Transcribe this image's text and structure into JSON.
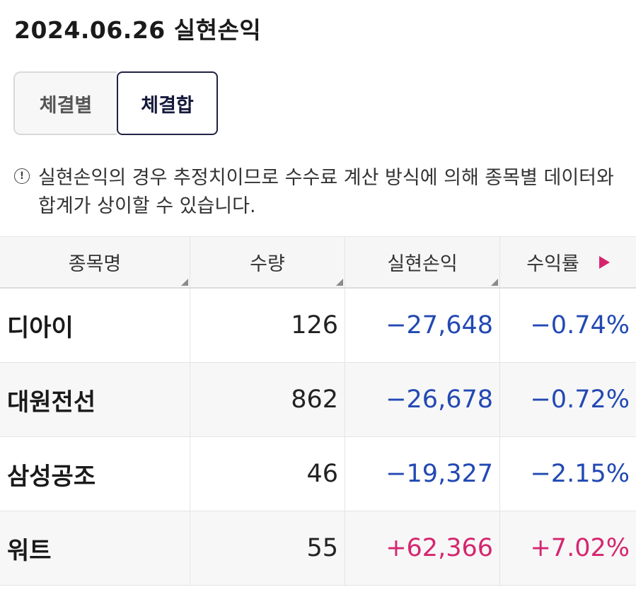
{
  "page_title": "2024.06.26 실현손익",
  "tabs": [
    {
      "label": "체결별",
      "active": false
    },
    {
      "label": "체결합",
      "active": true
    }
  ],
  "notice": {
    "icon": "info-icon",
    "text": "실현손익의 경우 추정치이므로 수수료 계산 방식에 의해 종목별 데이터와 합계가 상이할 수 있습니다."
  },
  "table": {
    "headers": {
      "name": "종목명",
      "qty": "수량",
      "pnl": "실현손익",
      "rate": "수익률"
    },
    "rows": [
      {
        "name": "디아이",
        "qty": "126",
        "pnl": "−27,648",
        "rate": "−0.74%",
        "sign": "neg"
      },
      {
        "name": "대원전선",
        "qty": "862",
        "pnl": "−26,678",
        "rate": "−0.72%",
        "sign": "neg"
      },
      {
        "name": "삼성공조",
        "qty": "46",
        "pnl": "−19,327",
        "rate": "−2.15%",
        "sign": "neg"
      },
      {
        "name": "워트",
        "qty": "55",
        "pnl": "+62,366",
        "rate": "+7.02%",
        "sign": "pos"
      }
    ]
  },
  "colors": {
    "negative": "#2249b3",
    "positive": "#d5266f",
    "accent_tab_border": "#1f2244"
  }
}
